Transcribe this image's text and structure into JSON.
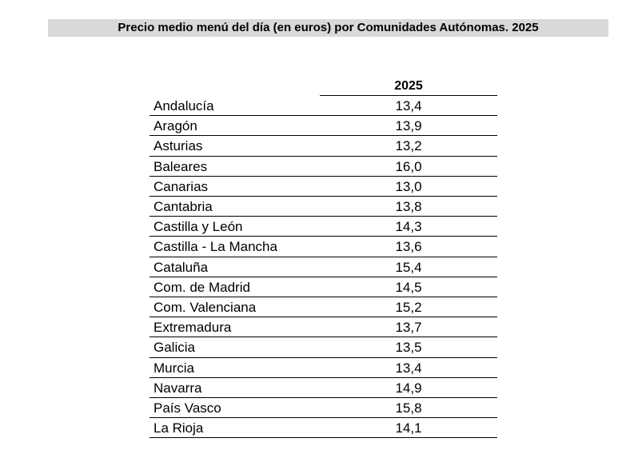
{
  "header": {
    "title": "Precio medio menú del día (en euros) por Comunidades Autónomas. 2025"
  },
  "table": {
    "column_header": "2025",
    "rows": [
      [
        "Andalucía",
        "13,4"
      ],
      [
        "Aragón",
        "13,9"
      ],
      [
        "Asturias",
        "13,2"
      ],
      [
        "Baleares",
        "16,0"
      ],
      [
        "Canarias",
        "13,0"
      ],
      [
        "Cantabria",
        "13,8"
      ],
      [
        "Castilla y León",
        "14,3"
      ],
      [
        "Castilla - La Mancha",
        "13,6"
      ],
      [
        "Cataluña",
        "15,4"
      ],
      [
        "Com. de Madrid",
        "14,5"
      ],
      [
        "Com. Valenciana",
        "15,2"
      ],
      [
        "Extremadura",
        "13,7"
      ],
      [
        "Galicia",
        "13,5"
      ],
      [
        "Murcia",
        "13,4"
      ],
      [
        "Navarra",
        "14,9"
      ],
      [
        "País Vasco",
        "15,8"
      ],
      [
        "La Rioja",
        "14,1"
      ]
    ]
  }
}
